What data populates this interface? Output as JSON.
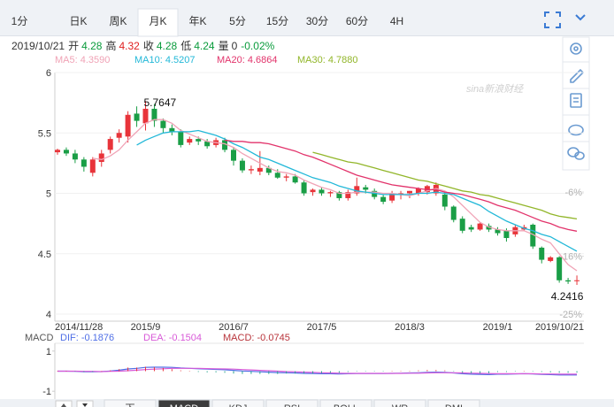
{
  "toolbar": {
    "tabs": [
      "1分",
      "日K",
      "周K",
      "月K",
      "年K",
      "5分",
      "15分",
      "30分",
      "60分",
      "4H"
    ],
    "active": "月K"
  },
  "quote": {
    "date": "2019/10/21",
    "items": [
      {
        "label": "开",
        "value": "4.28"
      },
      {
        "label": "高",
        "value": "4.32"
      },
      {
        "label": "收",
        "value": "4.28"
      },
      {
        "label": "低",
        "value": "4.24"
      },
      {
        "label": "量",
        "value": "0"
      }
    ],
    "change": "-0.02%"
  },
  "watermark": "sina新浪财经",
  "chart_data": [
    {
      "type": "candlestick",
      "categories": [
        "2014/11/28",
        null,
        null,
        null,
        null,
        null,
        null,
        null,
        null,
        null,
        "2015/9",
        null,
        null,
        null,
        null,
        null,
        null,
        null,
        null,
        null,
        "2016/7",
        null,
        null,
        null,
        null,
        null,
        null,
        null,
        null,
        null,
        "2017/5",
        null,
        null,
        null,
        null,
        null,
        null,
        null,
        null,
        null,
        "2018/3",
        null,
        null,
        null,
        null,
        null,
        null,
        null,
        null,
        null,
        "2019/1",
        null,
        null,
        null,
        null,
        null,
        null,
        null,
        null,
        "2019/10/21"
      ],
      "open": [
        5.34,
        5.36,
        5.33,
        5.28,
        5.17,
        5.26,
        5.36,
        5.46,
        5.47,
        5.66,
        5.58,
        5.7,
        5.6,
        5.54,
        5.51,
        5.42,
        5.45,
        5.43,
        5.4,
        5.44,
        5.36,
        5.27,
        5.19,
        5.18,
        5.21,
        5.17,
        5.13,
        5.14,
        5.09,
        5.01,
        5.03,
        5.0,
        5.01,
        4.96,
        5.0,
        5.05,
        5.02,
        4.97,
        4.94,
        4.99,
        5.0,
        5.0,
        5.01,
        5.0,
        4.99,
        4.89,
        4.79,
        4.72,
        4.7,
        4.73,
        4.7,
        4.69,
        4.66,
        4.7,
        4.74,
        4.55,
        4.44,
        4.47,
        4.28,
        4.28
      ],
      "high": [
        5.37,
        5.38,
        5.36,
        5.3,
        5.3,
        5.36,
        5.47,
        5.53,
        5.68,
        5.72,
        5.7647,
        5.74,
        5.62,
        5.57,
        5.53,
        5.47,
        5.47,
        5.45,
        5.46,
        5.46,
        5.38,
        5.29,
        5.23,
        5.35,
        5.23,
        5.2,
        5.16,
        5.16,
        5.11,
        5.04,
        5.05,
        5.02,
        5.02,
        5.03,
        5.13,
        5.07,
        5.04,
        4.99,
        5.02,
        5.02,
        5.02,
        5.05,
        5.07,
        5.09,
        5.01,
        4.9,
        4.81,
        4.74,
        4.76,
        4.75,
        4.72,
        4.71,
        4.74,
        4.74,
        4.75,
        4.56,
        4.48,
        4.48,
        4.3,
        4.32
      ],
      "low": [
        5.32,
        5.31,
        5.25,
        5.18,
        5.14,
        5.22,
        5.33,
        5.42,
        5.42,
        5.55,
        5.52,
        5.55,
        5.5,
        5.48,
        5.38,
        5.4,
        5.4,
        5.37,
        5.38,
        5.34,
        5.23,
        5.17,
        5.16,
        5.15,
        5.15,
        5.12,
        5.1,
        5.08,
        4.98,
        4.98,
        4.98,
        4.97,
        4.94,
        4.94,
        4.98,
        5.0,
        4.95,
        4.91,
        4.92,
        4.95,
        4.96,
        4.98,
        4.99,
        4.98,
        4.86,
        4.76,
        4.67,
        4.68,
        4.69,
        4.68,
        4.65,
        4.6,
        4.64,
        4.69,
        4.54,
        4.42,
        4.43,
        4.26,
        4.25,
        4.2416
      ],
      "close": [
        5.36,
        5.33,
        5.28,
        5.22,
        5.28,
        5.33,
        5.45,
        5.5,
        5.65,
        5.6,
        5.7,
        5.6,
        5.54,
        5.51,
        5.4,
        5.45,
        5.43,
        5.39,
        5.44,
        5.36,
        5.27,
        5.19,
        5.2,
        5.21,
        5.17,
        5.13,
        5.14,
        5.09,
        5.0,
        5.03,
        5.0,
        5.01,
        4.96,
        5.01,
        5.06,
        5.03,
        4.97,
        4.93,
        5.0,
        5.0,
        5.02,
        5.04,
        5.06,
        5.07,
        4.89,
        4.78,
        4.69,
        4.7,
        4.75,
        4.7,
        4.67,
        4.63,
        4.72,
        4.72,
        4.56,
        4.45,
        4.47,
        4.28,
        4.27,
        4.28
      ],
      "up_color": "#e8343a",
      "down_color": "#1a9e46",
      "series": [
        {
          "name": "MA5: 4.3590",
          "color": "#f0a3b6",
          "values": [
            null,
            null,
            null,
            null,
            5.29,
            5.28,
            5.31,
            5.36,
            5.44,
            5.51,
            5.58,
            5.61,
            5.61,
            5.58,
            5.52,
            5.49,
            5.46,
            5.43,
            5.42,
            5.41,
            5.38,
            5.33,
            5.29,
            5.25,
            5.21,
            5.18,
            5.17,
            5.15,
            5.11,
            5.08,
            5.05,
            5.03,
            5.0,
            5.0,
            5.01,
            5.01,
            5.01,
            5.0,
            5.0,
            4.99,
            4.98,
            5.0,
            5.02,
            5.04,
            5.02,
            4.97,
            4.9,
            4.83,
            4.76,
            4.72,
            4.7,
            4.69,
            4.69,
            4.69,
            4.66,
            4.62,
            4.59,
            4.5,
            4.41,
            4.359
          ]
        },
        {
          "name": "MA10: 4.5207",
          "color": "#22b8d8",
          "values": [
            null,
            null,
            null,
            null,
            null,
            null,
            null,
            null,
            null,
            5.4,
            5.44,
            5.47,
            5.5,
            5.51,
            5.51,
            5.51,
            5.52,
            5.5,
            5.48,
            5.45,
            5.41,
            5.38,
            5.34,
            5.3,
            5.28,
            5.25,
            5.22,
            5.19,
            5.16,
            5.13,
            5.11,
            5.09,
            5.06,
            5.04,
            5.02,
            5.01,
            5.0,
            4.99,
            4.99,
            4.99,
            4.99,
            5.0,
            5.0,
            5.01,
            5.0,
            4.99,
            4.96,
            4.93,
            4.9,
            4.85,
            4.81,
            4.77,
            4.74,
            4.71,
            4.69,
            4.66,
            4.64,
            4.6,
            4.56,
            4.5207
          ]
        },
        {
          "name": "MA20: 4.6864",
          "color": "#e2336b",
          "values": [
            null,
            null,
            null,
            null,
            null,
            null,
            null,
            null,
            null,
            null,
            null,
            null,
            null,
            null,
            null,
            null,
            null,
            null,
            null,
            5.44,
            5.43,
            5.43,
            5.42,
            5.42,
            5.41,
            5.39,
            5.37,
            5.35,
            5.32,
            5.3,
            5.27,
            5.24,
            5.21,
            5.18,
            5.15,
            5.13,
            5.11,
            5.09,
            5.07,
            5.06,
            5.05,
            5.04,
            5.03,
            5.03,
            5.01,
            5.0,
            4.99,
            4.97,
            4.95,
            4.93,
            4.9,
            4.88,
            4.86,
            4.83,
            4.8,
            4.77,
            4.75,
            4.72,
            4.7,
            4.6864
          ]
        },
        {
          "name": "MA30: 4.7880",
          "color": "#92b62a",
          "values": [
            null,
            null,
            null,
            null,
            null,
            null,
            null,
            null,
            null,
            null,
            null,
            null,
            null,
            null,
            null,
            null,
            null,
            null,
            null,
            null,
            null,
            null,
            null,
            null,
            null,
            null,
            null,
            null,
            null,
            5.34,
            5.32,
            5.3,
            5.28,
            5.26,
            5.25,
            5.23,
            5.21,
            5.19,
            5.17,
            5.15,
            5.13,
            5.11,
            5.1,
            5.08,
            5.06,
            5.04,
            5.02,
            5.01,
            4.99,
            4.98,
            4.96,
            4.94,
            4.92,
            4.9,
            4.88,
            4.86,
            4.83,
            4.81,
            4.8,
            4.788
          ]
        }
      ],
      "ylim": [
        4,
        6
      ],
      "yticks": [
        6,
        5.5,
        5,
        4.5,
        4
      ],
      "y2lim": [
        -25,
        12.6
      ],
      "y2ticks": [
        {
          "value": -6,
          "label": "-6%"
        },
        {
          "value": -16,
          "label": "-16%"
        },
        {
          "value": -25,
          "label": "-25%"
        }
      ],
      "annotations": [
        {
          "value": 5.7647
        },
        {
          "value": 4.2416
        }
      ],
      "grid": true
    },
    {
      "type": "macd",
      "title": "MACD",
      "series": [
        {
          "name": "DIF: -0.1876",
          "color": "#4f6fe6",
          "values": [
            0.0,
            0.0,
            -0.01,
            -0.03,
            -0.03,
            -0.02,
            0.01,
            0.05,
            0.11,
            0.14,
            0.19,
            0.2,
            0.2,
            0.19,
            0.16,
            0.14,
            0.12,
            0.1,
            0.09,
            0.07,
            0.04,
            0.01,
            -0.01,
            -0.03,
            -0.05,
            -0.07,
            -0.08,
            -0.09,
            -0.11,
            -0.12,
            -0.13,
            -0.13,
            -0.14,
            -0.13,
            -0.12,
            -0.12,
            -0.12,
            -0.12,
            -0.11,
            -0.1,
            -0.09,
            -0.08,
            -0.06,
            -0.05,
            -0.06,
            -0.09,
            -0.13,
            -0.15,
            -0.16,
            -0.17,
            -0.15,
            -0.15,
            -0.14,
            -0.13,
            -0.14,
            -0.16,
            -0.17,
            -0.19,
            -0.19,
            -0.1876
          ]
        },
        {
          "name": "DEA: -0.1504",
          "color": "#d85ad8",
          "values": [
            0.0,
            0.0,
            0.0,
            -0.01,
            -0.01,
            -0.02,
            -0.01,
            0.0,
            0.02,
            0.05,
            0.08,
            0.1,
            0.12,
            0.14,
            0.14,
            0.14,
            0.14,
            0.13,
            0.12,
            0.11,
            0.1,
            0.08,
            0.06,
            0.04,
            0.02,
            0.0,
            -0.02,
            -0.03,
            -0.05,
            -0.06,
            -0.08,
            -0.09,
            -0.1,
            -0.11,
            -0.11,
            -0.11,
            -0.11,
            -0.11,
            -0.11,
            -0.11,
            -0.1,
            -0.1,
            -0.09,
            -0.08,
            -0.08,
            -0.08,
            -0.09,
            -0.1,
            -0.11,
            -0.12,
            -0.13,
            -0.13,
            -0.13,
            -0.13,
            -0.13,
            -0.14,
            -0.14,
            -0.15,
            -0.15,
            -0.1504
          ]
        },
        {
          "name": "MACD: -0.0745",
          "color": "#b8333a",
          "up_color": "#e8343a",
          "down_color": "#2aa58e",
          "values": [
            0,
            0,
            -0.02,
            -0.04,
            -0.04,
            0,
            0.04,
            0.1,
            0.18,
            0.18,
            0.22,
            0.2,
            0.16,
            0.1,
            0.04,
            0,
            -0.04,
            -0.06,
            -0.06,
            -0.08,
            -0.12,
            -0.14,
            -0.14,
            -0.14,
            -0.14,
            -0.14,
            -0.12,
            -0.12,
            -0.12,
            -0.12,
            -0.1,
            -0.08,
            -0.08,
            -0.04,
            -0.02,
            -0.02,
            -0.02,
            -0.02,
            0,
            0.02,
            0.02,
            0.04,
            0.06,
            0.06,
            0.04,
            -0.02,
            -0.08,
            -0.1,
            -0.1,
            -0.1,
            -0.04,
            -0.04,
            -0.02,
            0,
            -0.02,
            -0.04,
            -0.06,
            -0.08,
            -0.08,
            -0.0745
          ]
        }
      ],
      "ylim": [
        -1.3,
        1.3
      ],
      "yticks": [
        1,
        -1
      ]
    }
  ],
  "bottom_tabs": {
    "tabs": [
      "下",
      "MACD",
      "KDJ",
      "RSI",
      "BOLL",
      "WR",
      "DMI"
    ],
    "active": "MACD"
  }
}
